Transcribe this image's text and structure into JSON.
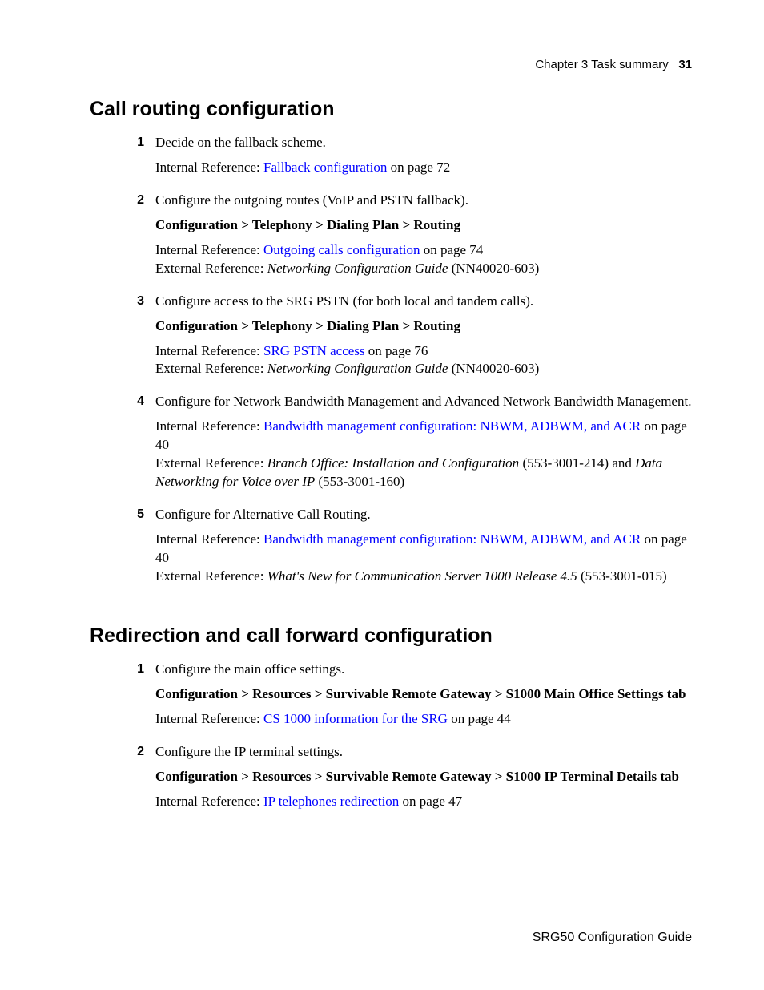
{
  "header": {
    "chapter": "Chapter 3  Task summary",
    "page_number": "31"
  },
  "sections": [
    {
      "title": "Call routing configuration",
      "steps": [
        {
          "num": "1",
          "text": "Decide on the fallback scheme.",
          "internal_prefix": "Internal Reference: ",
          "internal_link": "Fallback configuration",
          "internal_suffix": " on page 72"
        },
        {
          "num": "2",
          "text": "Configure the outgoing routes (VoIP and PSTN fallback).",
          "nav_path": "Configuration > Telephony > Dialing Plan > Routing",
          "internal_prefix": "Internal Reference: ",
          "internal_link": "Outgoing calls configuration",
          "internal_suffix": " on page 74",
          "external_prefix": "External Reference: ",
          "external_italic": "Networking Configuration Guide",
          "external_suffix": " (NN40020-603)"
        },
        {
          "num": "3",
          "text": "Configure access to the SRG PSTN (for both local and tandem calls).",
          "nav_path": "Configuration > Telephony > Dialing Plan > Routing",
          "internal_prefix": "Internal Reference: ",
          "internal_link": "SRG PSTN access",
          "internal_suffix": " on page 76",
          "external_prefix": "External Reference: ",
          "external_italic": "Networking Configuration Guide",
          "external_suffix": " (NN40020-603)"
        },
        {
          "num": "4",
          "text": "Configure for Network Bandwidth Management and Advanced Network Bandwidth Management.",
          "internal_prefix": "Internal Reference: ",
          "internal_link": "Bandwidth management configuration: NBWM, ADBWM, and ACR",
          "internal_suffix": " on page 40",
          "external_prefix": "External Reference: ",
          "external_italic": "Branch Office: Installation and Configuration",
          "external_mid": " (553-3001-214) and ",
          "external_italic2": "Data Networking for Voice over IP",
          "external_suffix": " (553-3001-160)"
        },
        {
          "num": "5",
          "text": "Configure for Alternative Call Routing.",
          "internal_prefix": "Internal Reference: ",
          "internal_link": "Bandwidth management configuration: NBWM, ADBWM, and ACR",
          "internal_suffix": " on page 40",
          "external_prefix": "External Reference: ",
          "external_italic": "What's New for Communication Server 1000 Release 4.5",
          "external_suffix": " (553-3001-015)"
        }
      ]
    },
    {
      "title": "Redirection and call forward configuration",
      "steps": [
        {
          "num": "1",
          "text": "Configure the main office settings.",
          "nav_path": "Configuration > Resources > Survivable Remote Gateway > S1000 Main Office Settings tab",
          "internal_prefix": "Internal Reference: ",
          "internal_link": "CS 1000 information for the SRG",
          "internal_suffix": " on page 44"
        },
        {
          "num": "2",
          "text": "Configure the IP terminal settings.",
          "nav_path": "Configuration > Resources > Survivable Remote Gateway > S1000 IP Terminal Details tab",
          "internal_prefix": "Internal Reference: ",
          "internal_link": "IP telephones redirection",
          "internal_suffix": " on page 47"
        }
      ]
    }
  ],
  "footer": {
    "doc_title": "SRG50 Configuration Guide"
  }
}
